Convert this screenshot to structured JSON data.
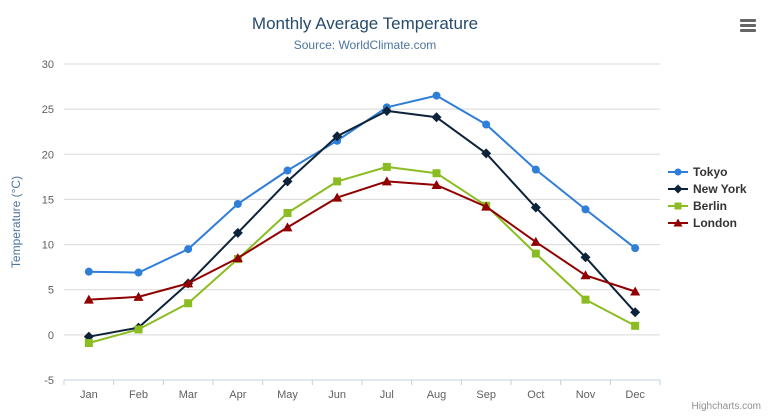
{
  "title": "Monthly Average Temperature",
  "subtitle": "Source: WorldClimate.com",
  "credits": "Highcharts.com",
  "chart_data": {
    "type": "line",
    "categories": [
      "Jan",
      "Feb",
      "Mar",
      "Apr",
      "May",
      "Jun",
      "Jul",
      "Aug",
      "Sep",
      "Oct",
      "Nov",
      "Dec"
    ],
    "ylabel": "Temperature (°C)",
    "ylim": [
      -5,
      30
    ],
    "ytick_interval": 5,
    "grid": true,
    "legend_position": "right",
    "series": [
      {
        "name": "Tokyo",
        "color": "#2f7ed8",
        "marker": "circle",
        "values": [
          7.0,
          6.9,
          9.5,
          14.5,
          18.2,
          21.5,
          25.2,
          26.5,
          23.3,
          18.3,
          13.9,
          9.6
        ]
      },
      {
        "name": "New York",
        "color": "#0d233a",
        "marker": "diamond",
        "values": [
          -0.2,
          0.8,
          5.7,
          11.3,
          17.0,
          22.0,
          24.8,
          24.1,
          20.1,
          14.1,
          8.6,
          2.5
        ]
      },
      {
        "name": "Berlin",
        "color": "#8bbc21",
        "marker": "square",
        "values": [
          -0.9,
          0.6,
          3.5,
          8.4,
          13.5,
          17.0,
          18.6,
          17.9,
          14.3,
          9.0,
          3.9,
          1.0
        ]
      },
      {
        "name": "London",
        "color": "#910000",
        "marker": "triangle",
        "values": [
          3.9,
          4.2,
          5.7,
          8.5,
          11.9,
          15.2,
          17.0,
          16.6,
          14.2,
          10.3,
          6.6,
          4.8
        ]
      }
    ]
  }
}
